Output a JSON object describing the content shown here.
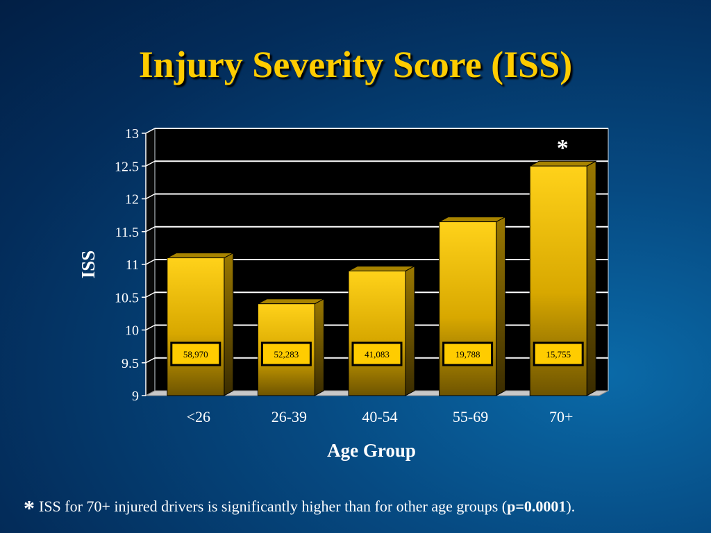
{
  "slide": {
    "title": "Injury Severity Score (ISS)"
  },
  "footnote": {
    "marker": "*",
    "text_before": "ISS for 70+ injured drivers is significantly higher than for other age groups (",
    "pvalue": "p=0.0001",
    "text_after": ")."
  },
  "colors": {
    "bar_top": "#ffd21a",
    "bar_bottom": "#6e5400",
    "plot_bg": "#000000",
    "grid": "#ffffff",
    "title": "#ffcc00"
  },
  "chart_data": {
    "type": "bar",
    "categories": [
      "<26",
      "26-39",
      "40-54",
      "55-69",
      "70+"
    ],
    "values": [
      11.1,
      10.4,
      10.9,
      11.65,
      12.5
    ],
    "bar_labels": [
      "58,970",
      "52,283",
      "41,083",
      "19,788",
      "15,755"
    ],
    "significance_marker": "*",
    "significance_category": "70+",
    "xlabel": "Age Group",
    "ylabel": "ISS",
    "ylim": [
      9,
      13
    ],
    "yticks": [
      9,
      9.5,
      10,
      10.5,
      11,
      11.5,
      12,
      12.5,
      13
    ],
    "grid": true,
    "legend": "none",
    "three_d": true
  }
}
